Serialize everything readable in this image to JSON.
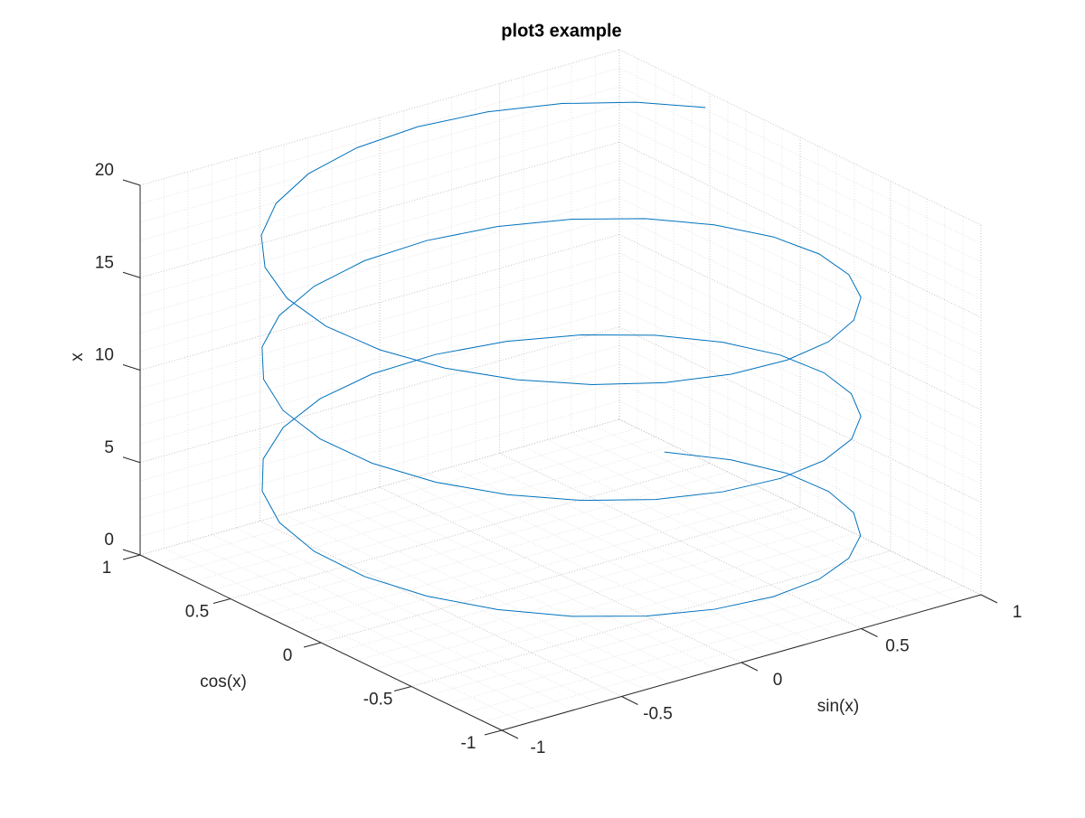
{
  "chart_data": {
    "type": "line3d",
    "title": "plot3 example",
    "xlabel": "sin(x)",
    "ylabel": "cos(x)",
    "zlabel": "x",
    "grid": true,
    "minor_grid": true,
    "xlim": [
      -1,
      1
    ],
    "xticks": [
      -1,
      -0.5,
      0,
      0.5,
      1
    ],
    "ylim": [
      -1,
      1
    ],
    "yticks": [
      -1,
      -0.5,
      0,
      0.5,
      1
    ],
    "zlim": [
      0,
      20
    ],
    "zticks": [
      0,
      5,
      10,
      15,
      20
    ],
    "series": [
      {
        "color": "#0072bd",
        "x": [
          0.841,
          0.949,
          0.998,
          0.984,
          0.909,
          0.778,
          0.598,
          0.382,
          0.141,
          -0.108,
          -0.351,
          -0.572,
          -0.757,
          -0.895,
          -0.978,
          -0.999,
          -0.959,
          -0.859,
          -0.706,
          -0.508,
          -0.279,
          -0.033,
          0.215,
          0.45,
          0.657,
          0.823,
          0.938,
          0.995,
          0.989,
          0.922,
          0.799,
          0.625,
          0.412,
          0.174,
          -0.075,
          -0.32,
          -0.544,
          -0.735,
          -0.88,
          -0.97,
          -1.0,
          -0.968,
          -0.875,
          -0.729,
          -0.537,
          -0.311,
          -0.066,
          0.183,
          0.42,
          0.632,
          0.804,
          0.926,
          0.991,
          0.994,
          0.935,
          0.818,
          0.65,
          0.442,
          0.207,
          -0.042,
          -0.288,
          -0.516,
          -0.712,
          -0.864,
          -0.961,
          -1.0,
          -0.976,
          -0.891,
          -0.751,
          -0.564,
          -0.343,
          -0.099,
          0.15,
          0.39,
          0.606,
          0.784,
          0.913
        ],
        "y": [
          0.54,
          0.315,
          0.071,
          -0.178,
          -0.416,
          -0.628,
          -0.801,
          -0.924,
          -0.99,
          -0.994,
          -0.937,
          -0.821,
          -0.654,
          -0.446,
          -0.211,
          0.038,
          0.284,
          0.512,
          0.709,
          0.861,
          0.96,
          0.999,
          0.977,
          0.893,
          0.754,
          0.568,
          0.347,
          0.104,
          -0.146,
          -0.386,
          -0.602,
          -0.781,
          -0.911,
          -0.985,
          -0.997,
          -0.948,
          -0.839,
          -0.678,
          -0.476,
          -0.243,
          0.004,
          0.252,
          0.483,
          0.685,
          0.844,
          0.95,
          0.998,
          0.983,
          0.907,
          0.775,
          0.595,
          0.378,
          0.137,
          -0.113,
          -0.355,
          -0.577,
          -0.76,
          -0.897,
          -0.978,
          -0.999,
          -0.958,
          -0.857,
          -0.702,
          -0.505,
          -0.275,
          -0.029,
          0.219,
          0.454,
          0.66,
          0.826,
          0.94,
          0.995,
          0.989,
          0.921,
          0.796,
          0.621,
          0.408
        ],
        "z": [
          1,
          1.25,
          1.5,
          1.75,
          2,
          2.25,
          2.5,
          2.75,
          3,
          3.25,
          3.5,
          3.75,
          4,
          4.25,
          4.5,
          4.75,
          5,
          5.25,
          5.5,
          5.75,
          6,
          6.25,
          6.5,
          6.75,
          7,
          7.25,
          7.5,
          7.75,
          8,
          8.25,
          8.5,
          8.75,
          9,
          9.25,
          9.5,
          9.75,
          10,
          10.25,
          10.5,
          10.75,
          11,
          11.25,
          11.5,
          11.75,
          12,
          12.25,
          12.5,
          12.75,
          13,
          13.25,
          13.5,
          13.75,
          14,
          14.25,
          14.5,
          14.75,
          15,
          15.25,
          15.5,
          15.75,
          16,
          16.25,
          16.5,
          16.75,
          17,
          17.25,
          17.5,
          17.75,
          18,
          18.25,
          18.5,
          18.75,
          19,
          19.25,
          19.5,
          19.75,
          20
        ]
      }
    ]
  }
}
